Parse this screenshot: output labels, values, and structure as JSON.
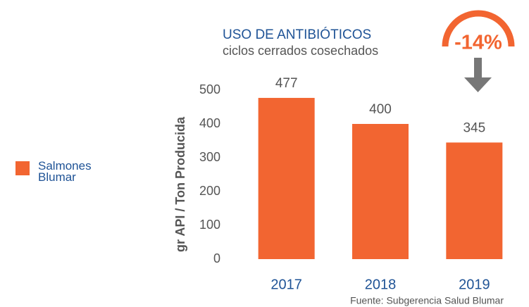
{
  "chart_data": {
    "type": "bar",
    "title": "USO DE ANTIBIÓTICOS",
    "subtitle": "ciclos cerrados cosechados",
    "y_label": "gr API / Ton Producida",
    "annotation": "-14%",
    "source": "Fuente: Subgerencia Salud Blumar",
    "categories": [
      "2017",
      "2018",
      "2019"
    ],
    "series": [
      {
        "name": "Salmones Blumar",
        "color": "#f26531",
        "values": [
          477,
          400,
          345
        ]
      }
    ],
    "ylim": [
      0,
      500
    ],
    "yticks": [
      0,
      100,
      200,
      300,
      400,
      500
    ],
    "grid": false,
    "legend": "left"
  }
}
